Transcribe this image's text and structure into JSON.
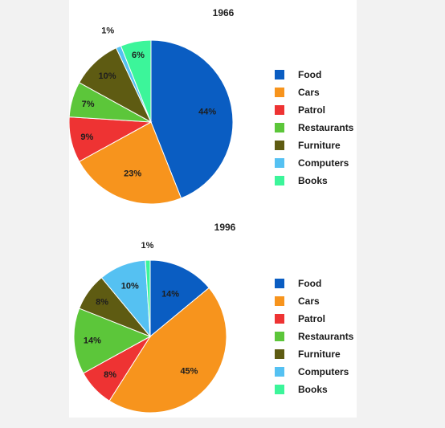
{
  "chart_data": [
    {
      "type": "pie",
      "title": "1966",
      "slices": [
        {
          "label": "Food",
          "value": 44,
          "display": "44%",
          "color": "#0a5dc2"
        },
        {
          "label": "Cars",
          "value": 23,
          "display": "23%",
          "color": "#f7941d"
        },
        {
          "label": "Patrol",
          "value": 9,
          "display": "9%",
          "color": "#ee3333"
        },
        {
          "label": "Restaurants",
          "value": 7,
          "display": "7%",
          "color": "#5cc63a"
        },
        {
          "label": "Furniture",
          "value": 10,
          "display": "10%",
          "color": "#5e5b12"
        },
        {
          "label": "Computers",
          "value": 1,
          "display": "1%",
          "color": "#55c1f2"
        },
        {
          "label": "Books",
          "value": 6,
          "display": "6%",
          "color": "#3cf59a"
        }
      ],
      "legend": [
        "Food",
        "Cars",
        "Patrol",
        "Restaurants",
        "Furniture",
        "Computers",
        "Books"
      ],
      "legend_placement": "right"
    },
    {
      "type": "pie",
      "title": "1996",
      "slices": [
        {
          "label": "Food",
          "value": 14,
          "display": "14%",
          "color": "#0a5dc2"
        },
        {
          "label": "Cars",
          "value": 45,
          "display": "45%",
          "color": "#f7941d"
        },
        {
          "label": "Patrol",
          "value": 8,
          "display": "8%",
          "color": "#ee3333"
        },
        {
          "label": "Restaurants",
          "value": 14,
          "display": "14%",
          "color": "#5cc63a"
        },
        {
          "label": "Furniture",
          "value": 8,
          "display": "8%",
          "color": "#5e5b12"
        },
        {
          "label": "Computers",
          "value": 10,
          "display": "10%",
          "color": "#55c1f2"
        },
        {
          "label": "Books",
          "value": 1,
          "display": "1%",
          "color": "#3cf59a"
        }
      ],
      "legend": [
        "Food",
        "Cars",
        "Patrol",
        "Restaurants",
        "Furniture",
        "Computers",
        "Books"
      ],
      "legend_placement": "right"
    }
  ]
}
